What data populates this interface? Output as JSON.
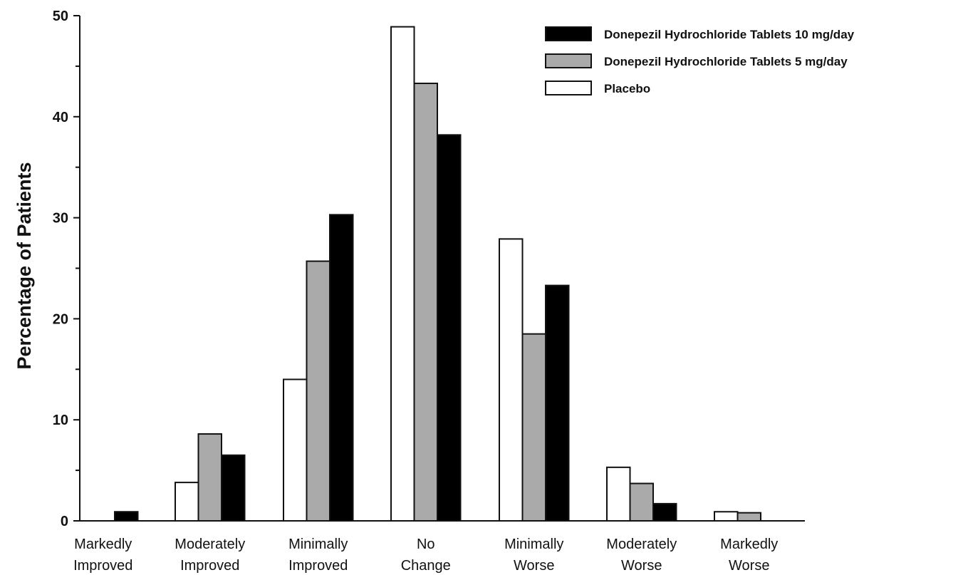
{
  "chart_data": {
    "type": "bar",
    "ylabel": "Percentage of Patients",
    "xlabel": "",
    "ylim": [
      0,
      50
    ],
    "yticks": [
      0,
      10,
      20,
      30,
      40,
      50
    ],
    "grid": false,
    "legend_position": "top-right",
    "categories": [
      [
        "Markedly",
        "Improved"
      ],
      [
        "Moderately",
        "Improved"
      ],
      [
        "Minimally",
        "Improved"
      ],
      [
        "No",
        "Change"
      ],
      [
        "Minimally",
        "Worse"
      ],
      [
        "Moderately",
        "Worse"
      ],
      [
        "Markedly",
        "Worse"
      ]
    ],
    "series": [
      {
        "name": "Placebo",
        "color": "#ffffff",
        "values": [
          0,
          3.8,
          14.0,
          48.9,
          27.9,
          5.3,
          0.9
        ]
      },
      {
        "name": "Donepezil Hydrochloride Tablets 5 mg/day",
        "color": "#aaaaaa",
        "values": [
          0,
          8.6,
          25.7,
          43.3,
          18.5,
          3.7,
          0.8
        ]
      },
      {
        "name": "Donepezil Hydrochloride Tablets 10 mg/day",
        "color": "#000000",
        "values": [
          0.9,
          6.5,
          30.3,
          38.2,
          23.3,
          1.7,
          0
        ]
      }
    ],
    "legend_order": [
      2,
      1,
      0
    ]
  }
}
